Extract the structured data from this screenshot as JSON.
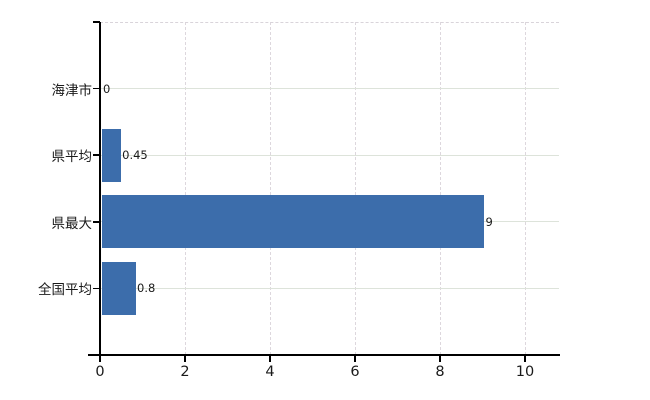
{
  "chart_data": {
    "type": "bar",
    "orientation": "horizontal",
    "title": "",
    "xlabel": "",
    "ylabel": "",
    "categories": [
      "海津市",
      "県平均",
      "県最大",
      "全国平均"
    ],
    "values": [
      0,
      0.45,
      9,
      0.8
    ],
    "value_labels": [
      "0",
      "0.45",
      "9",
      "0.8"
    ],
    "x_ticks": [
      0,
      2,
      4,
      6,
      8,
      10
    ],
    "x_tick_labels": [
      "0",
      "2",
      "4",
      "6",
      "8",
      "10"
    ],
    "xlim": [
      0,
      10.8
    ],
    "grid": true,
    "legend": false,
    "colors": {
      "bar": "#3c6dab",
      "h_gridline": "#dde3da",
      "v_gridline": "#ddd7dd",
      "axis": "#000000",
      "text": "#1a1a1a"
    }
  }
}
